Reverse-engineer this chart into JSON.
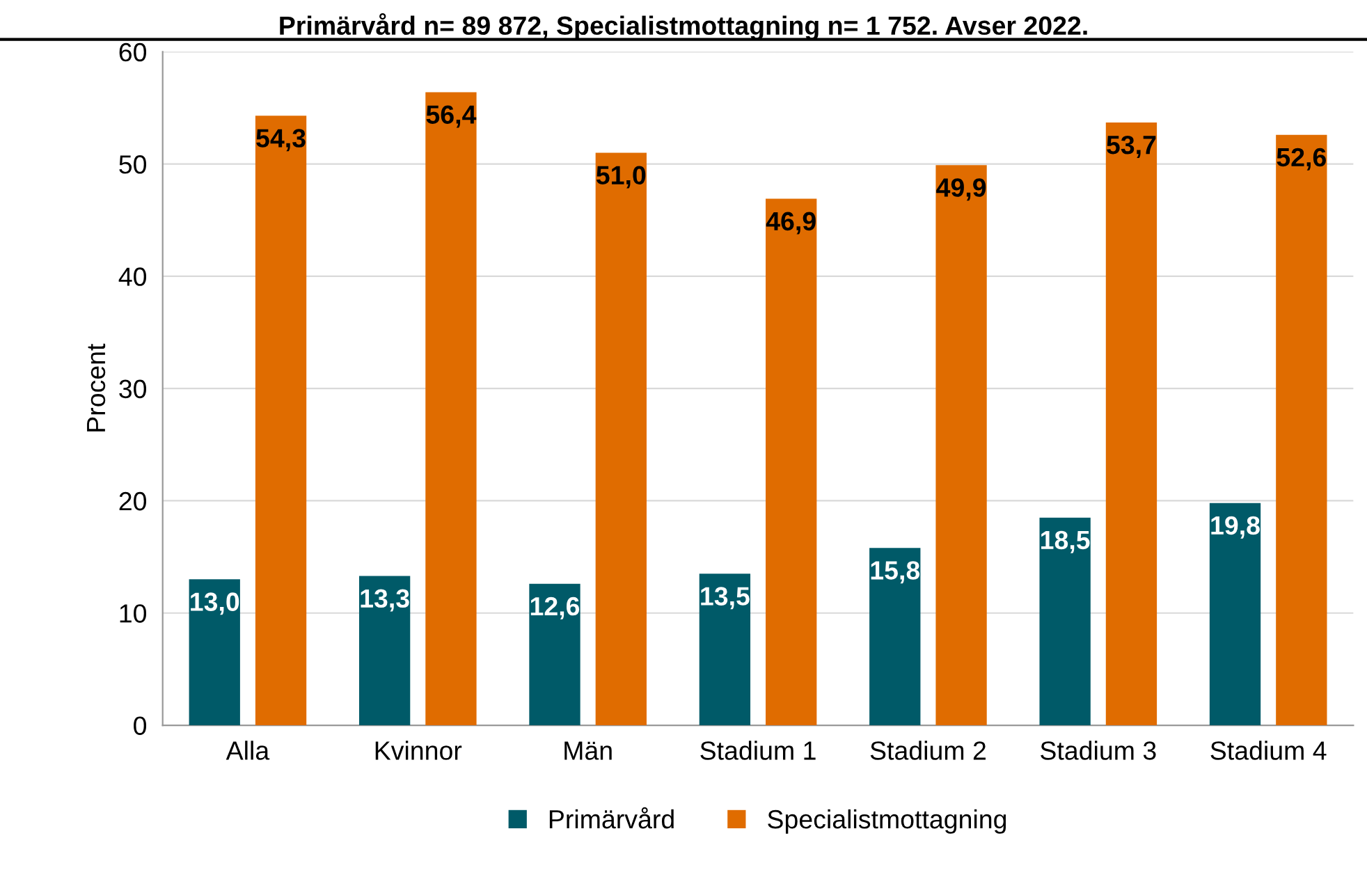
{
  "chart_data": {
    "type": "bar",
    "title": "Primärvård n= 89 872, Specialistmottagning n= 1 752. Avser 2022.",
    "ylabel": "Procent",
    "categories": [
      "Alla",
      "Kvinnor",
      "Män",
      "Stadium 1",
      "Stadium 2",
      "Stadium 3",
      "Stadium 4"
    ],
    "series": [
      {
        "name": "Primärvård",
        "color": "#005a68",
        "values": [
          13.0,
          13.3,
          12.6,
          13.5,
          15.8,
          18.5,
          19.8
        ],
        "value_labels": [
          "13,0",
          "13,3",
          "12,6",
          "13,5",
          "15,8",
          "18,5",
          "19,8"
        ]
      },
      {
        "name": "Specialistmottagning",
        "color": "#e06c00",
        "values": [
          54.3,
          56.4,
          51.0,
          46.9,
          49.9,
          53.7,
          52.6
        ],
        "value_labels": [
          "54,3",
          "56,4",
          "51,0",
          "46,9",
          "49,9",
          "53,7",
          "52,6"
        ]
      }
    ],
    "ylim": [
      0,
      60
    ],
    "yticks": [
      0,
      10,
      20,
      30,
      40,
      50,
      60
    ],
    "grid": "y",
    "legend": "bottom"
  }
}
